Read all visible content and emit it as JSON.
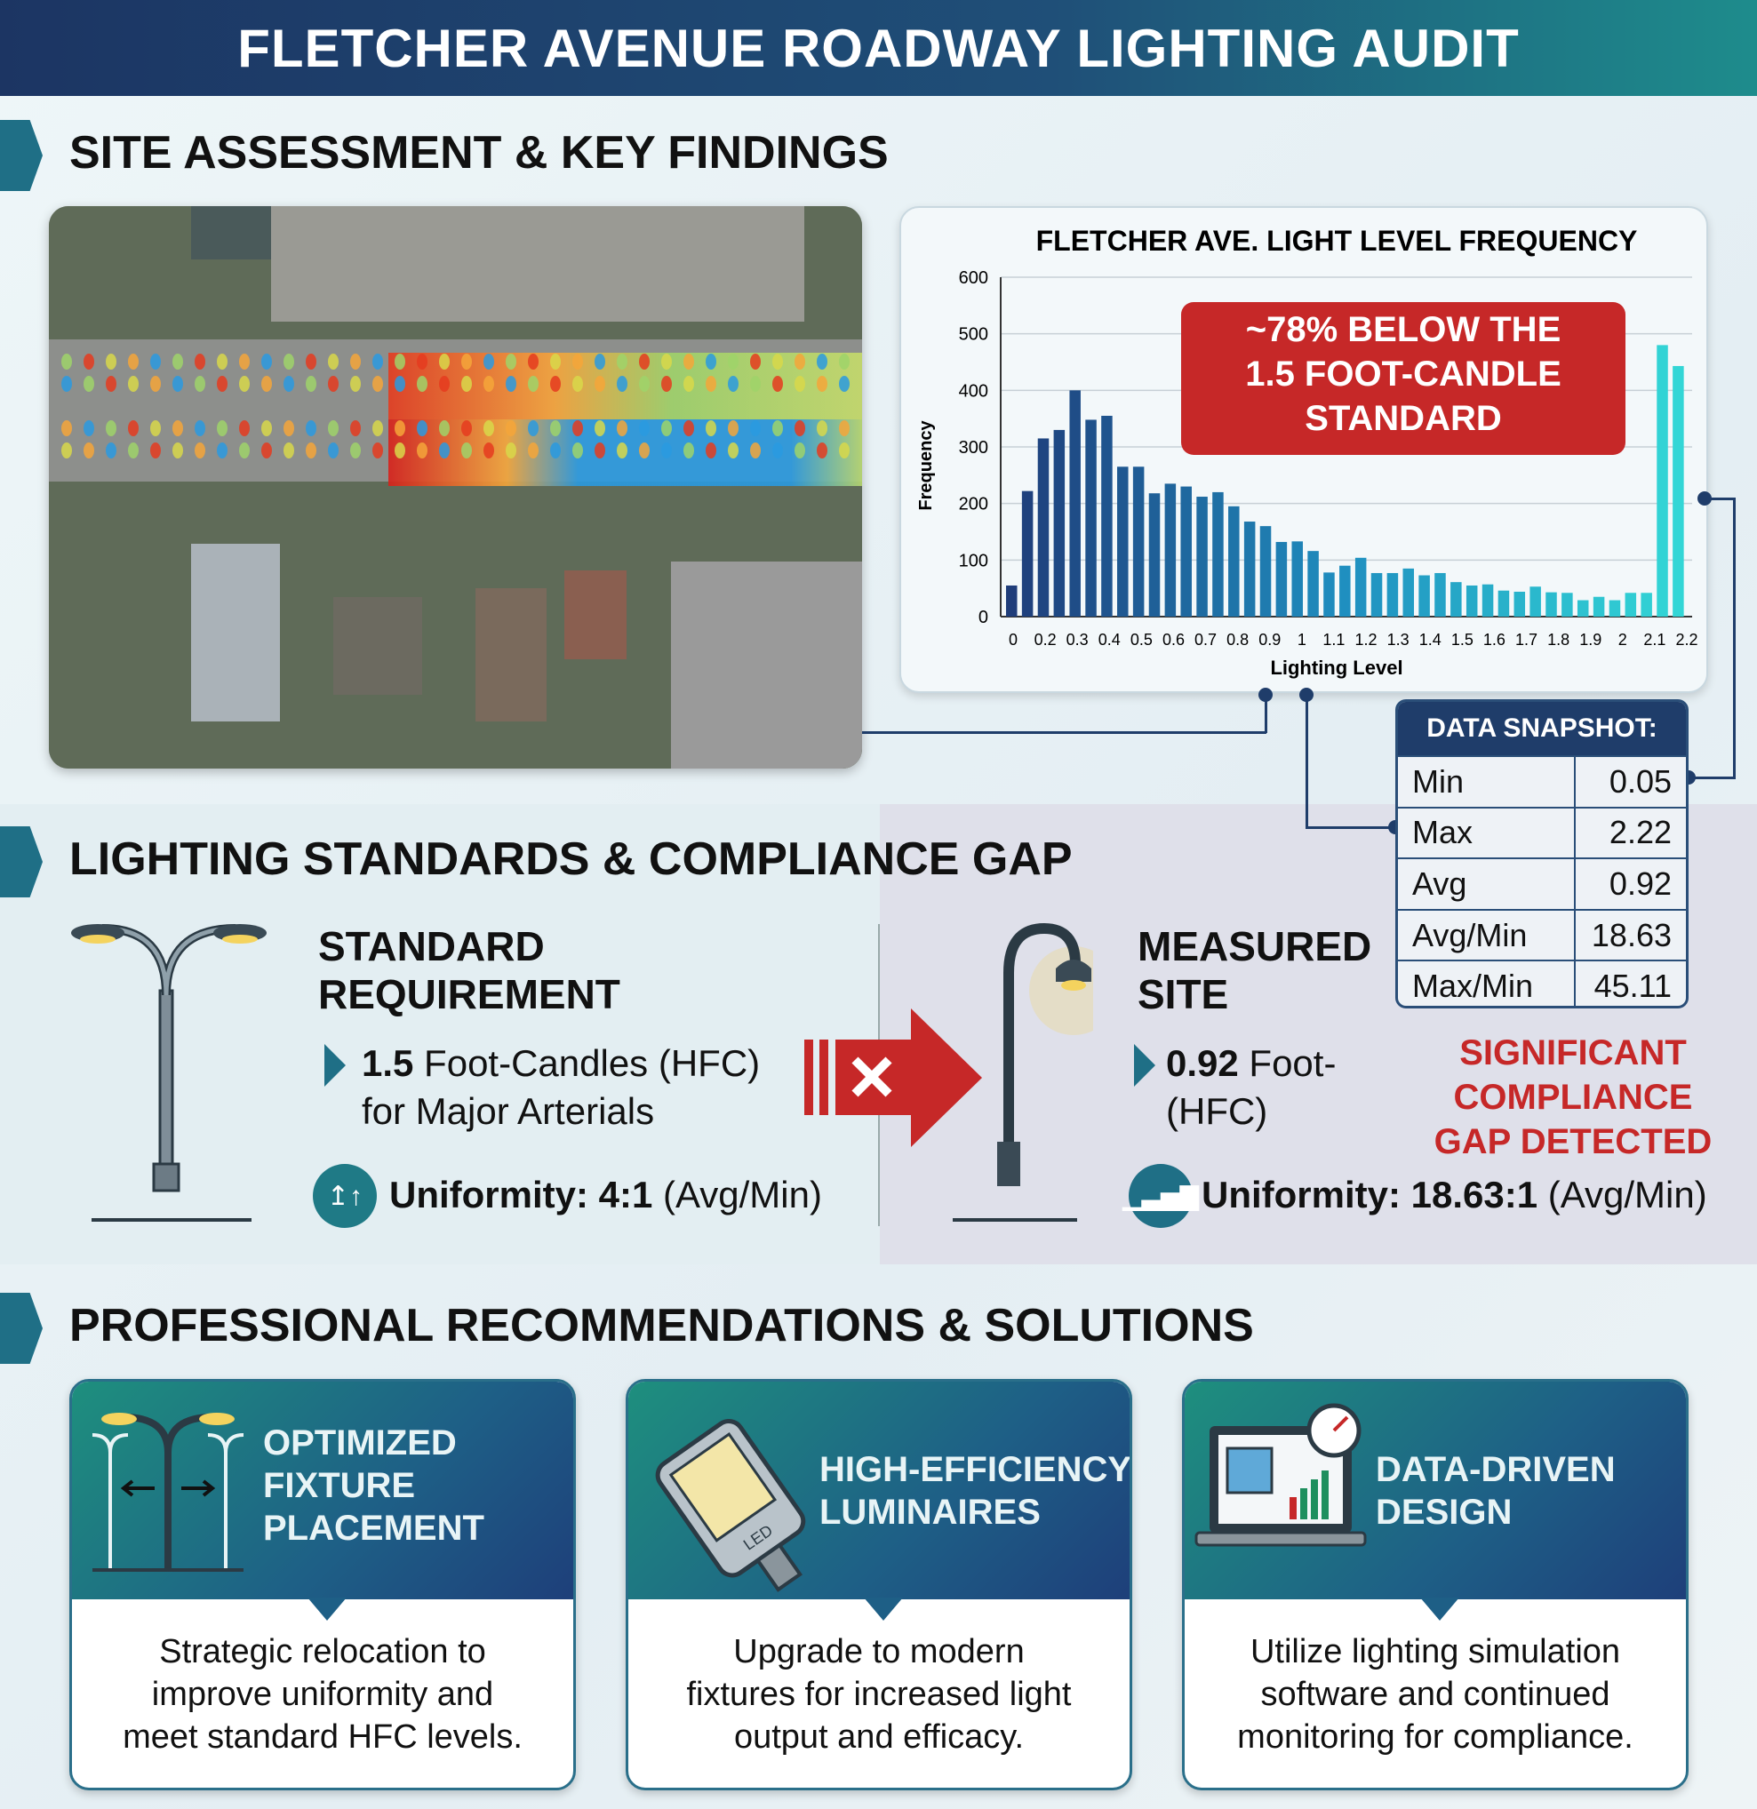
{
  "header": {
    "title": "FLETCHER AVENUE ROADWAY LIGHTING AUDIT"
  },
  "sections": {
    "site": "SITE ASSESSMENT & KEY FINDINGS",
    "standards": "LIGHTING STANDARDS & COMPLIANCE GAP",
    "recommendations": "PROFESSIONAL RECOMMENDATIONS & SOLUTIONS"
  },
  "chart_data": {
    "type": "bar",
    "title": "FLETCHER AVE. LIGHT LEVEL FREQUENCY",
    "xlabel": "Lighting Level",
    "ylabel": "Frequency",
    "ylim": [
      0,
      600
    ],
    "yticks": [
      0,
      100,
      200,
      300,
      400,
      500,
      600
    ],
    "xtick_labels": [
      "0",
      "0.2",
      "0.3",
      "0.4",
      "0.5",
      "0.6",
      "0.7",
      "0.8",
      "0.9",
      "1",
      "1.1",
      "1.2",
      "1.3",
      "1.4",
      "1.5",
      "1.6",
      "1.7",
      "1.8",
      "1.9",
      "2",
      "2.1",
      "2.2"
    ],
    "values": [
      55,
      222,
      315,
      330,
      400,
      348,
      355,
      265,
      265,
      218,
      235,
      230,
      212,
      220,
      195,
      168,
      160,
      132,
      133,
      116,
      78,
      90,
      104,
      77,
      77,
      85,
      73,
      77,
      61,
      55,
      57,
      46,
      44,
      53,
      43,
      42,
      29,
      35,
      29,
      42,
      42,
      480,
      443
    ],
    "grid": true,
    "colors": {
      "low": "#1f3d7a",
      "mid": "#1f8fc0",
      "high": "#33d6d6"
    },
    "annotation": "~78% BELOW THE 1.5 FOOT-CANDLE STANDARD"
  },
  "snapshot": {
    "title": "DATA SNAPSHOT:",
    "rows": [
      {
        "k": "Min",
        "v": "0.05"
      },
      {
        "k": "Max",
        "v": "2.22"
      },
      {
        "k": "Avg",
        "v": "0.92"
      },
      {
        "k": "Avg/Min",
        "v": "18.63"
      },
      {
        "k": "Max/Min",
        "v": "45.11"
      }
    ]
  },
  "standard": {
    "title1": "STANDARD",
    "title2": "REQUIREMENT",
    "value": "1.5",
    "value_rest": " Foot-Candles (HFC)",
    "line2": "for Major Arterials",
    "uni_label": "Uniformity: 4:1",
    "uni_rest": " (Avg/Min)"
  },
  "measured": {
    "title1": "MEASURED",
    "title2": "SITE",
    "value": "0.92",
    "value_rest": " Foot-",
    "line2": "(HFC)",
    "uni_label": "Uniformity: 18.63:1",
    "uni_rest": " (Avg/Min)"
  },
  "gap": {
    "l1": "SIGNIFICANT",
    "l2": "COMPLIANCE",
    "l3": "GAP DETECTED",
    "color": "#c62828"
  },
  "cards": [
    {
      "title": [
        "OPTIMIZED",
        "FIXTURE",
        "PLACEMENT"
      ],
      "body": [
        "Strategic relocation to",
        "improve uniformity and",
        "meet standard HFC levels."
      ],
      "icon": "streetlight-arrows-icon"
    },
    {
      "title": [
        "HIGH-EFFICIENCY",
        "LUMINAIRES"
      ],
      "body": [
        "Upgrade to modern",
        "fixtures for increased light",
        "output and efficacy."
      ],
      "icon": "led-luminaire-icon"
    },
    {
      "title": [
        "DATA-DRIVEN",
        "DESIGN"
      ],
      "body": [
        "Utilize lighting simulation",
        "software and continued",
        "monitoring for compliance."
      ],
      "icon": "laptop-gauge-icon"
    }
  ],
  "map": {
    "led_label": "LED"
  }
}
